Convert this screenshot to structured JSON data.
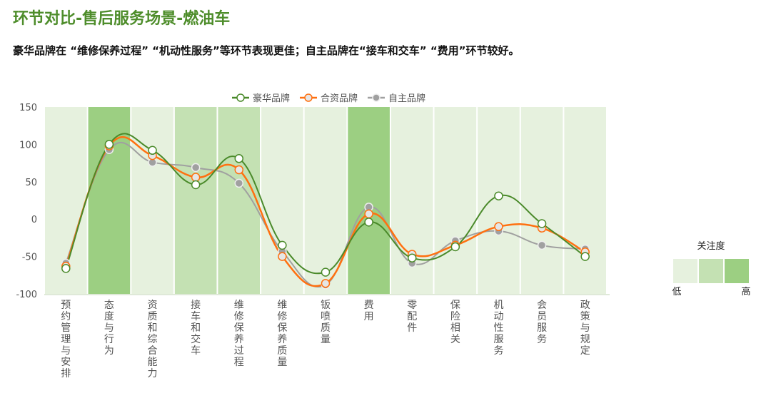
{
  "title": "环节对比-售后服务场景-燃油车",
  "subtitle": "豪华品牌在 “维修保养过程” “机动性服务”等环节表现更佳；自主品牌在“接车和交车” “费用”环节较好。",
  "chart_data": {
    "type": "line",
    "title": "环节对比-售后服务场景-燃油车",
    "xlabel": "",
    "ylabel": "",
    "ylim": [
      -100,
      150
    ],
    "yticks": [
      "150",
      "100",
      "50",
      "0",
      "-50",
      "-100"
    ],
    "ytick_values": [
      150,
      100,
      50,
      0,
      -50,
      -100
    ],
    "legend_position": "top-center",
    "categories": [
      "预约管理与安排",
      "态度与行为",
      "资质和综合能力",
      "接车和交车",
      "维修保养过程",
      "维修保养质量",
      "钣喷质量",
      "费用",
      "零配件",
      "保险相关",
      "机动性服务",
      "会员服务",
      "政策与规定"
    ],
    "attention_levels": [
      0,
      2,
      0,
      1,
      1,
      0,
      0,
      2,
      0,
      0,
      0,
      0,
      0
    ],
    "series": [
      {
        "name": "豪华品牌",
        "color": "#4a8a2a",
        "marker": "hollow",
        "values": [
          -66,
          100,
          92,
          46,
          81,
          -35,
          -71,
          -4,
          -52,
          -37,
          31,
          -6,
          -50
        ]
      },
      {
        "name": "合资品牌",
        "color": "#ff7010",
        "marker": "light",
        "values": [
          -63,
          98,
          85,
          56,
          66,
          -50,
          -86,
          7,
          -47,
          -35,
          -10,
          -12,
          -44
        ]
      },
      {
        "name": "自主品牌",
        "color": "#a0a0a0",
        "marker": "filled",
        "values": [
          -59,
          93,
          76,
          69,
          48,
          -43,
          -88,
          16,
          -59,
          -29,
          -16,
          -35,
          -40
        ]
      }
    ],
    "attention_legend": {
      "title": "关注度",
      "low": "低",
      "high": "高",
      "colors": [
        "#e6f1de",
        "#c4e1b3",
        "#9ccf82"
      ]
    }
  }
}
